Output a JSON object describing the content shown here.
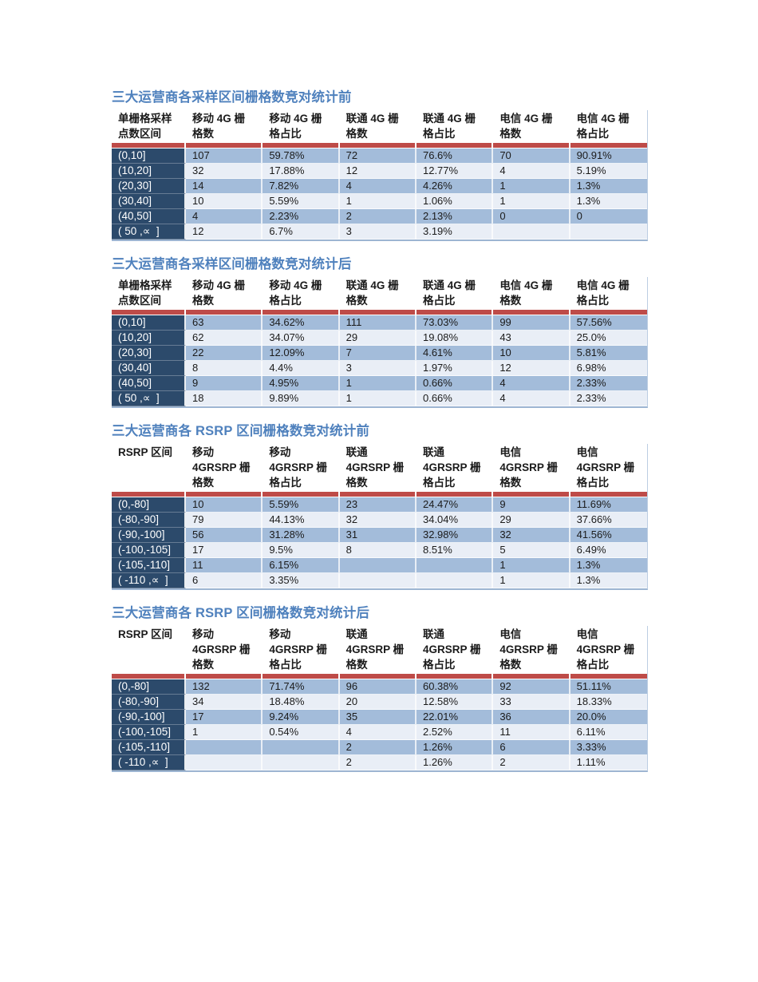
{
  "document": {
    "background": "#ffffff"
  },
  "colors": {
    "title_blue": "#4F81BD",
    "row_label_navy": "#2C4A6B",
    "separator_red": "#BE4B48",
    "row_dark_blue": "#A3BCDA",
    "row_light_blue": "#E9EEF6",
    "header_text": "#1b1b1b",
    "cell_text": "#1b1b1b",
    "row_label_text": "#ffffff",
    "table_edge": "#9DB5D2"
  },
  "tables": [
    {
      "title": "三大运营商各采样区间栅格数竞对统计前",
      "headers": [
        "单栅格采样\n点数区间",
        "移动 4G 栅\n格数",
        "移动 4G 栅\n格占比",
        "联通 4G 栅\n格数",
        "联通 4G 栅\n格占比",
        "电信 4G 栅\n格数",
        "电信 4G 栅\n格占比"
      ],
      "rows": [
        [
          "(0,10]",
          "107",
          "59.78%",
          "72",
          "76.6%",
          "70",
          "90.91%"
        ],
        [
          "(10,20]",
          "32",
          "17.88%",
          "12",
          "12.77%",
          "4",
          "5.19%"
        ],
        [
          "(20,30]",
          "14",
          "7.82%",
          "4",
          "4.26%",
          "1",
          "1.3%"
        ],
        [
          "(30,40]",
          "10",
          "5.59%",
          "1",
          "1.06%",
          "1",
          "1.3%"
        ],
        [
          "(40,50]",
          "4",
          "2.23%",
          "2",
          "2.13%",
          "0",
          "0"
        ],
        [
          "( 50 ,∝  ]",
          "12",
          "6.7%",
          "3",
          "3.19%",
          "",
          ""
        ]
      ]
    },
    {
      "title": "三大运营商各采样区间栅格数竞对统计后",
      "headers": [
        "单栅格采样\n点数区间",
        "移动 4G 栅\n格数",
        "移动 4G 栅\n格占比",
        "联通 4G 栅\n格数",
        "联通 4G 栅\n格占比",
        "电信 4G 栅\n格数",
        "电信 4G 栅\n格占比"
      ],
      "rows": [
        [
          "(0,10]",
          "63",
          "34.62%",
          "111",
          "73.03%",
          "99",
          "57.56%"
        ],
        [
          "(10,20]",
          "62",
          "34.07%",
          "29",
          "19.08%",
          "43",
          "25.0%"
        ],
        [
          "(20,30]",
          "22",
          "12.09%",
          "7",
          "4.61%",
          "10",
          "5.81%"
        ],
        [
          "(30,40]",
          "8",
          "4.4%",
          "3",
          "1.97%",
          "12",
          "6.98%"
        ],
        [
          "(40,50]",
          "9",
          "4.95%",
          "1",
          "0.66%",
          "4",
          "2.33%"
        ],
        [
          "( 50 ,∝  ]",
          "18",
          "9.89%",
          "1",
          "0.66%",
          "4",
          "2.33%"
        ]
      ]
    },
    {
      "title": "三大运营商各 RSRP 区间栅格数竞对统计前",
      "headers": [
        "RSRP 区间",
        "移动\n4GRSRP 栅\n格数",
        "移动\n4GRSRP 栅\n格占比",
        "联通\n4GRSRP 栅\n格数",
        "联通\n4GRSRP 栅\n格占比",
        "电信\n4GRSRP 栅\n格数",
        "电信\n4GRSRP 栅\n格占比"
      ],
      "rows": [
        [
          "(0,-80]",
          "10",
          "5.59%",
          "23",
          "24.47%",
          "9",
          "11.69%"
        ],
        [
          "(-80,-90]",
          "79",
          "44.13%",
          "32",
          "34.04%",
          "29",
          "37.66%"
        ],
        [
          "(-90,-100]",
          "56",
          "31.28%",
          "31",
          "32.98%",
          "32",
          "41.56%"
        ],
        [
          "(-100,-105]",
          "17",
          "9.5%",
          "8",
          "8.51%",
          "5",
          "6.49%"
        ],
        [
          "(-105,-110]",
          "11",
          "6.15%",
          "",
          "",
          "1",
          "1.3%"
        ],
        [
          "( -110 ,∝  ]",
          "6",
          "3.35%",
          "",
          "",
          "1",
          "1.3%"
        ]
      ]
    },
    {
      "title": "三大运营商各 RSRP 区间栅格数竞对统计后",
      "headers": [
        "RSRP 区间",
        "移动\n4GRSRP 栅\n格数",
        "移动\n4GRSRP 栅\n格占比",
        "联通\n4GRSRP 栅\n格数",
        "联通\n4GRSRP 栅\n格占比",
        "电信\n4GRSRP 栅\n格数",
        "电信\n4GRSRP 栅\n格占比"
      ],
      "rows": [
        [
          "(0,-80]",
          "132",
          "71.74%",
          "96",
          "60.38%",
          "92",
          "51.11%"
        ],
        [
          "(-80,-90]",
          "34",
          "18.48%",
          "20",
          "12.58%",
          "33",
          "18.33%"
        ],
        [
          "(-90,-100]",
          "17",
          "9.24%",
          "35",
          "22.01%",
          "36",
          "20.0%"
        ],
        [
          "(-100,-105]",
          "1",
          "0.54%",
          "4",
          "2.52%",
          "11",
          "6.11%"
        ],
        [
          "(-105,-110]",
          "",
          "",
          "2",
          "1.26%",
          "6",
          "3.33%"
        ],
        [
          "( -110 ,∝  ]",
          "",
          "",
          "2",
          "1.26%",
          "2",
          "1.11%"
        ]
      ]
    }
  ]
}
